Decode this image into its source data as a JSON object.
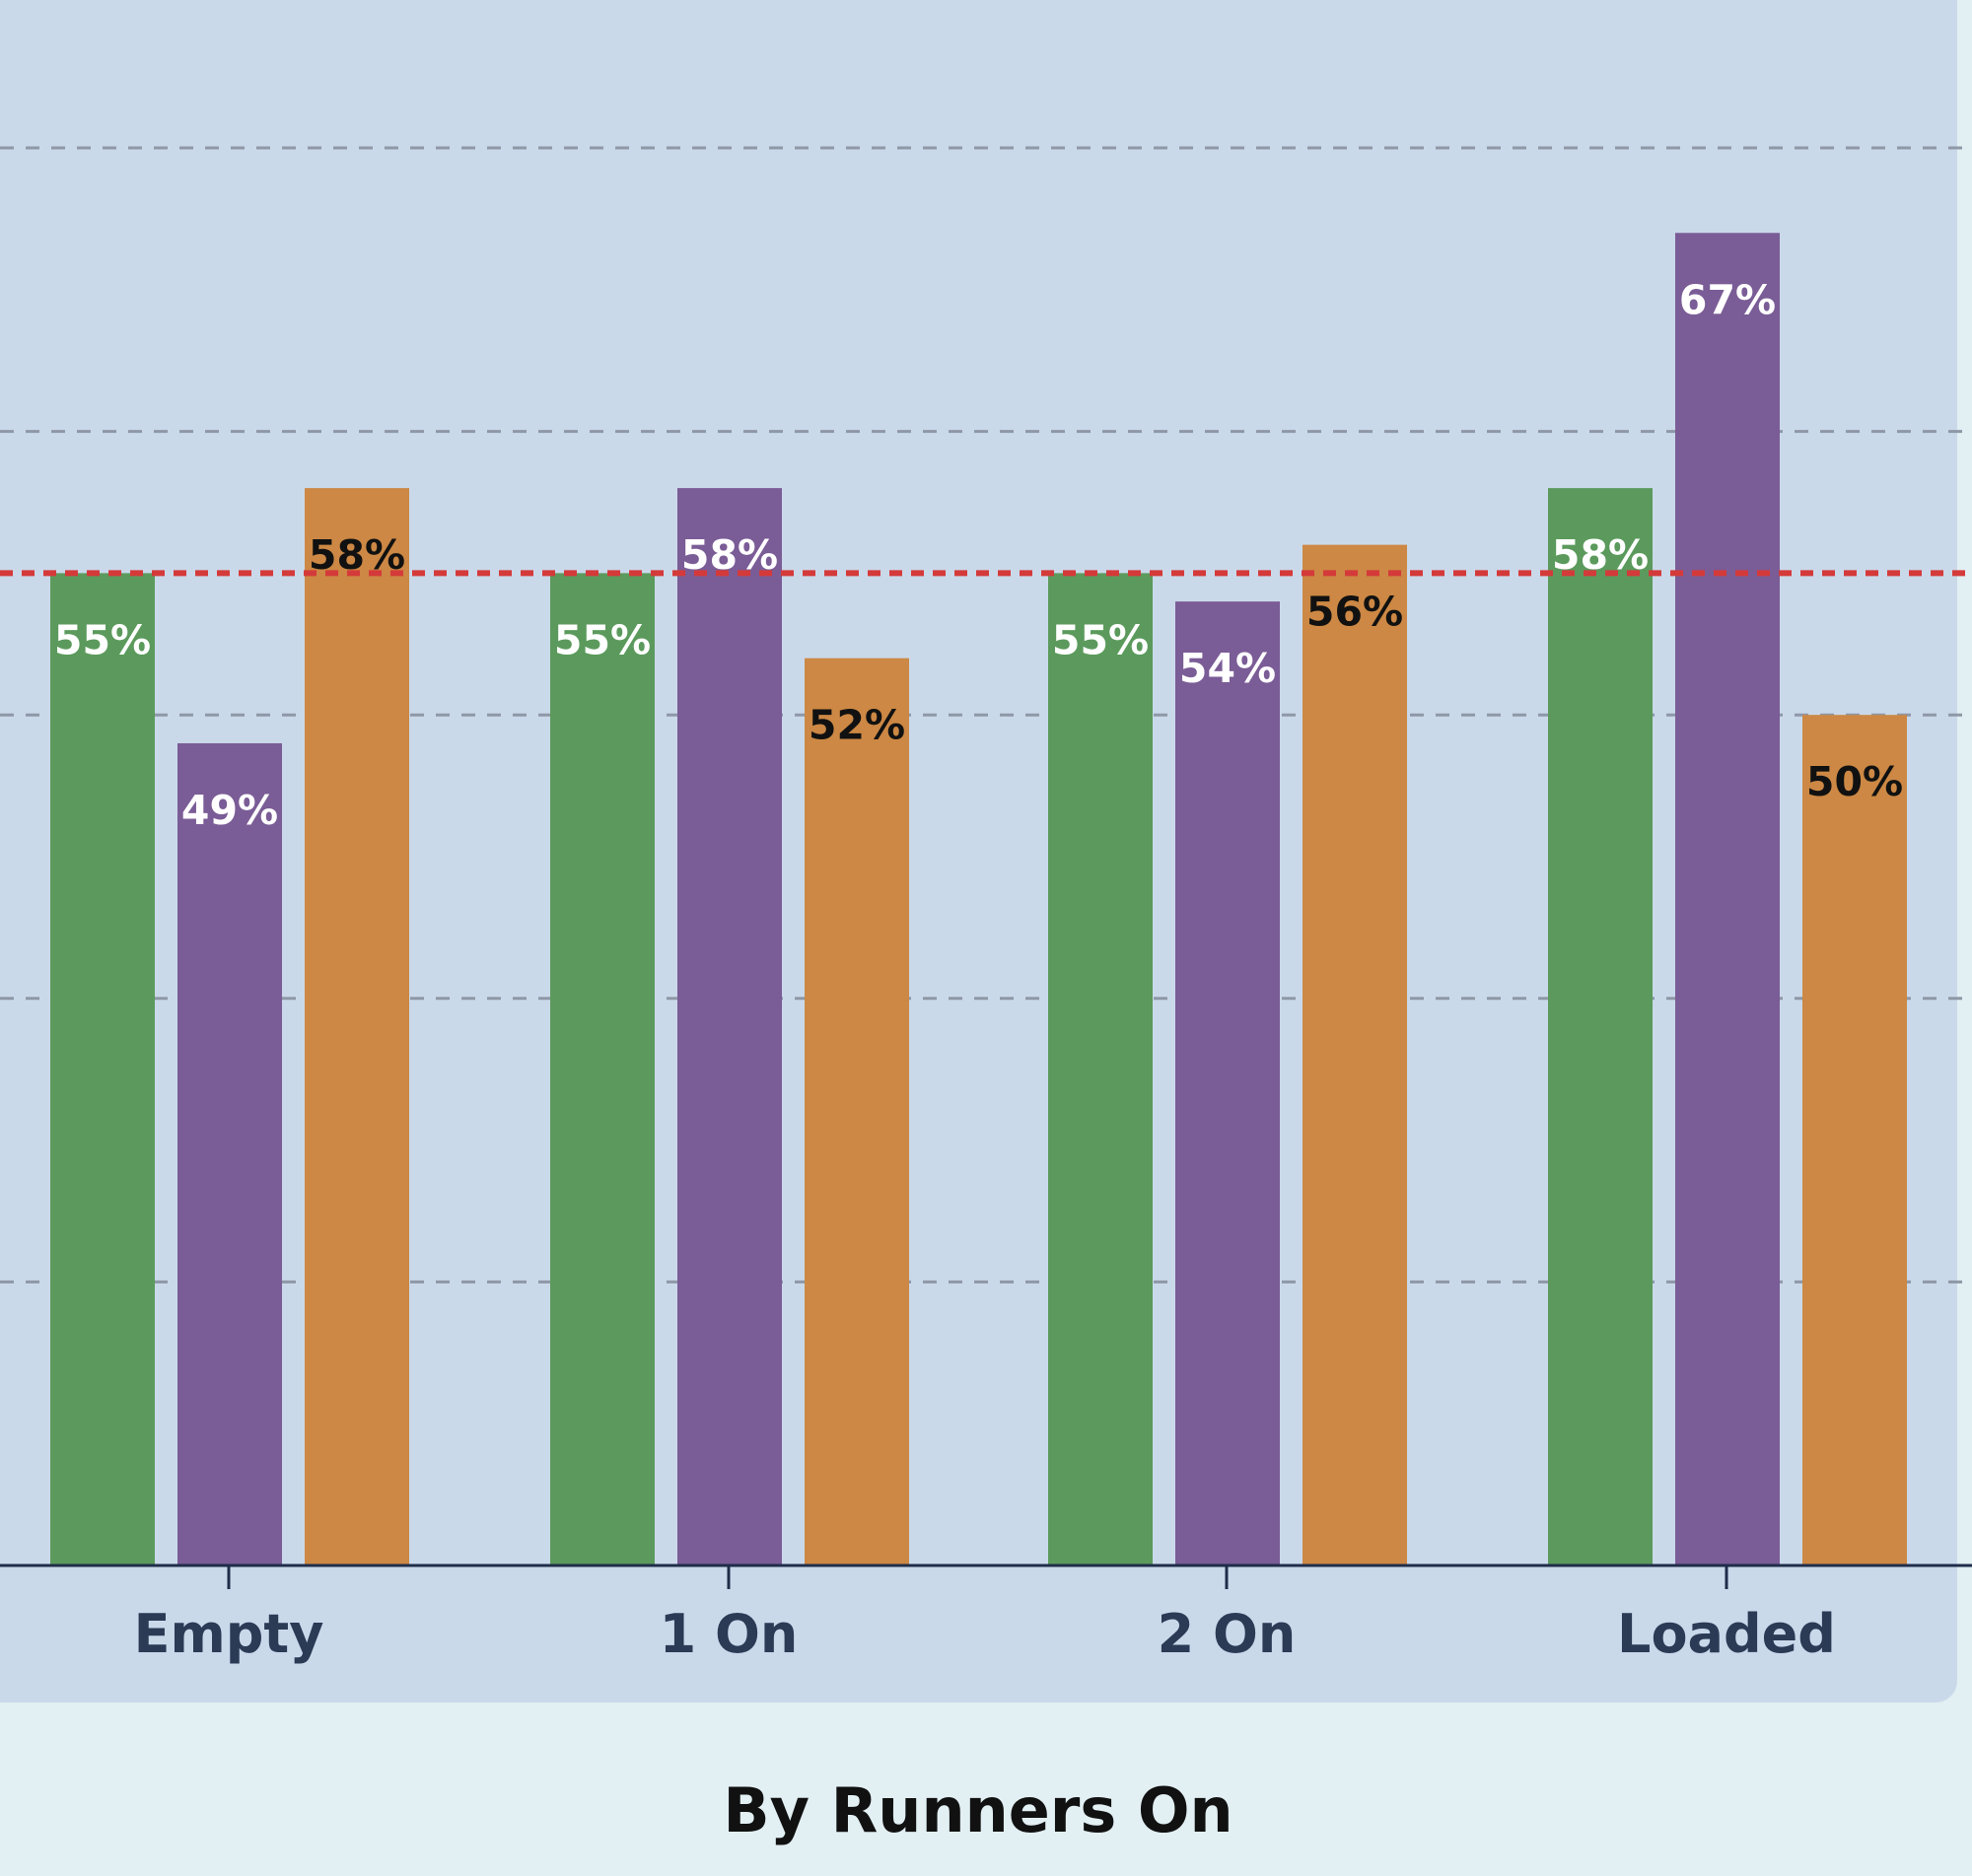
{
  "chart_data": {
    "type": "bar",
    "title": "By Runners On",
    "categories": [
      "Empty",
      "1 On",
      "2 On",
      "Loaded"
    ],
    "series": [
      {
        "values": [
          55,
          55,
          55,
          58
        ],
        "color": "#5b9a5c",
        "label_color": "#ffffff"
      },
      {
        "values": [
          49,
          58,
          54,
          67
        ],
        "color": "#7a5c96",
        "label_color": "#ffffff"
      },
      {
        "values": [
          58,
          52,
          56,
          50
        ],
        "color": "#cc8844",
        "label_color": "#111111"
      }
    ],
    "value_labels": [
      [
        "55%",
        "55%",
        "55%",
        "58%"
      ],
      [
        "49%",
        "58%",
        "54%",
        "67%"
      ],
      [
        "58%",
        "52%",
        "56%",
        "50%"
      ]
    ],
    "ylim": [
      20,
      70
    ],
    "gridlines": [
      30,
      40,
      50,
      60,
      70
    ],
    "reference_line": {
      "value": 55,
      "color": "#d43a3a",
      "style": "dashed"
    },
    "grid": true,
    "panel_color": "#cad9ea",
    "background_color": "#e2eff3"
  }
}
